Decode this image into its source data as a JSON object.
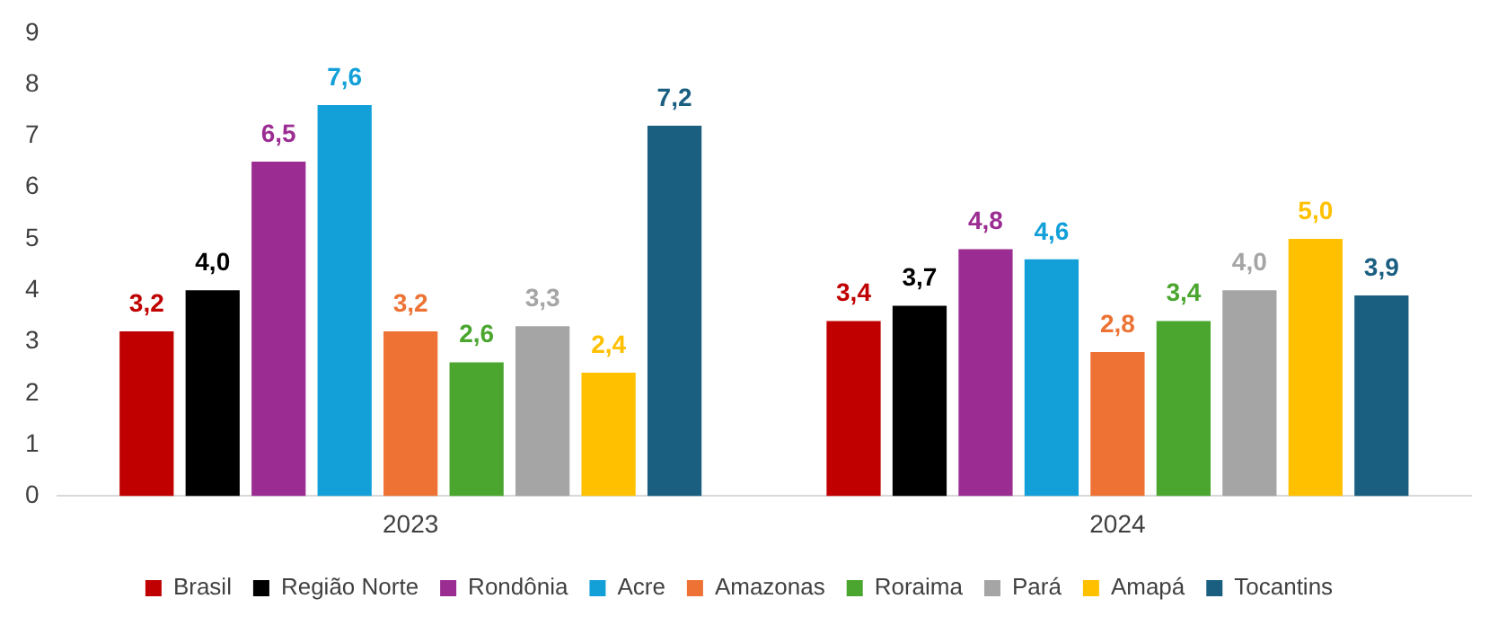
{
  "chart_data": {
    "type": "bar",
    "categories": [
      "2023",
      "2024"
    ],
    "series": [
      {
        "name": "Brasil",
        "color": "#c00000",
        "values": [
          3.2,
          3.4
        ],
        "value_labels": [
          "3,2",
          "3,4"
        ]
      },
      {
        "name": "Região Norte",
        "color": "#000000",
        "values": [
          4.0,
          3.7
        ],
        "value_labels": [
          "4,0",
          "3,7"
        ]
      },
      {
        "name": "Rondônia",
        "color": "#9b2d92",
        "values": [
          6.5,
          4.8
        ],
        "value_labels": [
          "6,5",
          "4,8"
        ]
      },
      {
        "name": "Acre",
        "color": "#13a0d9",
        "values": [
          7.6,
          4.6
        ],
        "value_labels": [
          "7,6",
          "4,6"
        ]
      },
      {
        "name": "Amazonas",
        "color": "#ed7234",
        "values": [
          3.2,
          2.8
        ],
        "value_labels": [
          "3,2",
          "2,8"
        ]
      },
      {
        "name": "Roraima",
        "color": "#4aa62f",
        "values": [
          2.6,
          3.4
        ],
        "value_labels": [
          "2,6",
          "3,4"
        ]
      },
      {
        "name": "Pará",
        "color": "#a5a5a5",
        "values": [
          3.3,
          4.0
        ],
        "value_labels": [
          "3,3",
          "4,0"
        ]
      },
      {
        "name": "Amapá",
        "color": "#ffc000",
        "values": [
          2.4,
          5.0
        ],
        "value_labels": [
          "2,4",
          "5,0"
        ]
      },
      {
        "name": "Tocantins",
        "color": "#1a5e80",
        "values": [
          7.2,
          3.9
        ],
        "value_labels": [
          "7,2",
          "3,9"
        ]
      }
    ],
    "ylim": [
      0,
      9
    ],
    "yticks": [
      0,
      1,
      2,
      3,
      4,
      5,
      6,
      7,
      8,
      9
    ],
    "grid": false,
    "legend": "bottom"
  }
}
